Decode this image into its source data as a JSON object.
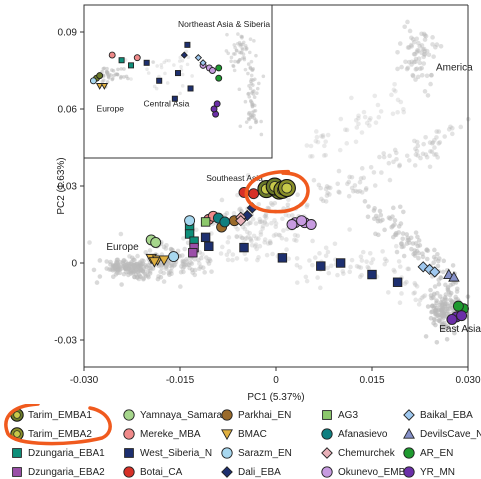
{
  "chart_data": {
    "type": "scatter",
    "xlabel": "PC1 (5.37%)",
    "ylabel": "PC2 (1.63%)",
    "xlim": [
      -0.03,
      0.03
    ],
    "ylim": [
      -0.04,
      0.1
    ],
    "x_ticks": [
      "-0.030",
      "-0.015",
      "0",
      "0.015",
      "0.030"
    ],
    "x_tick_values": [
      -0.03,
      -0.015,
      0,
      0.015,
      0.03
    ],
    "y_ticks": [
      "-0.03",
      "0",
      "0.03",
      "0.06",
      "0.09"
    ],
    "y_tick_values": [
      -0.03,
      0,
      0.03,
      0.06,
      0.09
    ],
    "main_labels": [
      {
        "text": "America",
        "x": 0.025,
        "y": 0.075
      },
      {
        "text": "Europe",
        "x": -0.0265,
        "y": 0.005
      },
      {
        "text": "East Asia",
        "x": 0.0255,
        "y": -0.0268
      }
    ],
    "inset": {
      "xlim": [
        -0.03,
        0.03
      ],
      "ylim": [
        0.03,
        0.1
      ],
      "y_ticks": [
        "0.09",
        "0.06"
      ],
      "y_tick_values": [
        0.09,
        0.06
      ],
      "labels": [
        {
          "text": "Northeast Asia & Siberia",
          "x": 0.0,
          "y": 0.092
        },
        {
          "text": "Europe",
          "x": -0.026,
          "y": 0.059
        },
        {
          "text": "Central Asia",
          "x": -0.011,
          "y": 0.061
        },
        {
          "text": "Southeast Asia",
          "x": 0.009,
          "y": 0.032
        }
      ]
    },
    "highlight_circle": {
      "x": 0.0,
      "y": 0.0275,
      "rx": 0.0055,
      "ry": 0.0075
    },
    "series": [
      {
        "name": "Tarim_EMBA1",
        "marker": "circle",
        "color": "#6b7a2a",
        "points": [
          [
            -0.0015,
            0.0288
          ],
          [
            0.0,
            0.0292
          ],
          [
            0.0005,
            0.0282
          ],
          [
            -0.0002,
            0.0298
          ]
        ]
      },
      {
        "name": "Tarim_EMBA2",
        "marker": "circle",
        "color": "#8a8f2a",
        "points": [
          [
            0.001,
            0.0285
          ],
          [
            0.0017,
            0.0292
          ]
        ]
      },
      {
        "name": "Dzungaria_EBA1",
        "marker": "square",
        "color": "#0e8f7a",
        "points": [
          [
            -0.0135,
            0.0145
          ],
          [
            -0.0135,
            0.0113
          ],
          [
            -0.0128,
            0.0085
          ]
        ]
      },
      {
        "name": "Dzungaria_EBA2",
        "marker": "square",
        "color": "#9b4fa8",
        "points": [
          [
            -0.0128,
            0.006
          ],
          [
            -0.013,
            0.004
          ]
        ]
      },
      {
        "name": "Yamnaya_Samara",
        "marker": "circle",
        "color": "#a6d68c",
        "points": [
          [
            -0.0195,
            0.009
          ],
          [
            -0.0188,
            0.008
          ]
        ]
      },
      {
        "name": "Mereke_MBA",
        "marker": "circle",
        "color": "#f08a8a",
        "points": [
          [
            -0.0105,
            0.017
          ],
          [
            -0.0098,
            0.0182
          ]
        ]
      },
      {
        "name": "West_Siberia_N",
        "marker": "square",
        "color": "#1d2f6f",
        "points": [
          [
            -0.011,
            0.01
          ],
          [
            -0.0105,
            0.0065
          ],
          [
            -0.005,
            0.006
          ],
          [
            0.001,
            0.002
          ],
          [
            0.007,
            -0.0012
          ],
          [
            0.0101,
            0.0
          ],
          [
            0.015,
            -0.0045
          ],
          [
            0.019,
            -0.0075
          ]
        ]
      },
      {
        "name": "Botai_CA",
        "marker": "circle",
        "color": "#d63027",
        "points": [
          [
            -0.0035,
            0.027
          ],
          [
            -0.005,
            0.0275
          ]
        ]
      },
      {
        "name": "Parkhai_EN",
        "marker": "circle",
        "color": "#9a6a2a",
        "points": [
          [
            -0.0065,
            0.0165
          ],
          [
            -0.0085,
            0.014
          ]
        ]
      },
      {
        "name": "BMAC",
        "marker": "triangle-down",
        "color": "#e0b040",
        "points": [
          [
            -0.0195,
            0.0018
          ],
          [
            -0.0185,
            0.0012
          ],
          [
            -0.0175,
            0.0012
          ],
          [
            -0.019,
            0.0005
          ]
        ]
      },
      {
        "name": "Sarazm_EN",
        "marker": "circle",
        "color": "#a8d8f0",
        "points": [
          [
            -0.0135,
            0.0165
          ],
          [
            -0.016,
            0.0025
          ]
        ]
      },
      {
        "name": "Dali_EBA",
        "marker": "diamond",
        "color": "#1d2f6f",
        "points": [
          [
            -0.0045,
            0.0185
          ],
          [
            -0.0037,
            0.0215
          ]
        ]
      },
      {
        "name": "AG3",
        "marker": "square",
        "color": "#8cc86c",
        "points": [
          [
            -0.011,
            0.016
          ]
        ]
      },
      {
        "name": "Afanasievo",
        "marker": "circle",
        "color": "#0f7f80",
        "points": [
          [
            -0.009,
            0.0175
          ],
          [
            -0.008,
            0.016
          ]
        ]
      },
      {
        "name": "Chemurchek",
        "marker": "diamond",
        "color": "#e8b0b8",
        "points": [
          [
            -0.0055,
            0.0178
          ],
          [
            -0.0055,
            0.0165
          ]
        ]
      },
      {
        "name": "Okunevo_EMBA",
        "marker": "circle",
        "color": "#c79be0",
        "points": [
          [
            0.003,
            0.0157
          ],
          [
            0.0045,
            0.0157
          ],
          [
            0.0025,
            0.015
          ],
          [
            0.0055,
            0.015
          ],
          [
            0.004,
            0.0165
          ]
        ]
      },
      {
        "name": "Baikal_EBA",
        "marker": "diamond",
        "color": "#9fc8ef",
        "points": [
          [
            0.023,
            -0.0015
          ],
          [
            0.024,
            -0.0025
          ],
          [
            0.0248,
            -0.0035
          ]
        ]
      },
      {
        "name": "DevilsCave_N",
        "marker": "triangle-up",
        "color": "#8590c8",
        "points": [
          [
            0.027,
            -0.0045
          ],
          [
            0.0278,
            -0.0055
          ]
        ]
      },
      {
        "name": "AR_EN",
        "marker": "circle",
        "color": "#1f9a30",
        "points": [
          [
            0.0293,
            -0.0178
          ],
          [
            0.0285,
            -0.0168
          ]
        ]
      },
      {
        "name": "YR_MN",
        "marker": "circle",
        "color": "#6b2fa8",
        "points": [
          [
            0.0282,
            -0.021
          ],
          [
            0.0275,
            -0.022
          ],
          [
            0.029,
            -0.0205
          ]
        ]
      }
    ]
  },
  "legend": {
    "items": [
      {
        "label": "Tarim_EMBA1",
        "marker": "circle",
        "color": "#6b7a2a"
      },
      {
        "label": "Tarim_EMBA2",
        "marker": "circle",
        "color": "#8a8f2a"
      },
      {
        "label": "Dzungaria_EBA1",
        "marker": "square",
        "color": "#0e8f7a"
      },
      {
        "label": "Dzungaria_EBA2",
        "marker": "square",
        "color": "#9b4fa8"
      },
      {
        "label": "Yamnaya_Samara",
        "marker": "circle",
        "color": "#a6d68c"
      },
      {
        "label": "Mereke_MBA",
        "marker": "circle",
        "color": "#f08a8a"
      },
      {
        "label": "West_Siberia_N",
        "marker": "square",
        "color": "#1d2f6f"
      },
      {
        "label": "Botai_CA",
        "marker": "circle",
        "color": "#d63027"
      },
      {
        "label": "Parkhai_EN",
        "marker": "circle",
        "color": "#9a6a2a"
      },
      {
        "label": "BMAC",
        "marker": "triangle-down",
        "color": "#e0b040"
      },
      {
        "label": "Sarazm_EN",
        "marker": "circle",
        "color": "#a8d8f0"
      },
      {
        "label": "Dali_EBA",
        "marker": "diamond",
        "color": "#1d2f6f"
      },
      {
        "label": "AG3",
        "marker": "square",
        "color": "#8cc86c"
      },
      {
        "label": "Afanasievo",
        "marker": "circle",
        "color": "#0f7f80"
      },
      {
        "label": "Chemurchek",
        "marker": "diamond",
        "color": "#e8b0b8"
      },
      {
        "label": "Okunevo_EMBA",
        "marker": "circle",
        "color": "#c79be0"
      },
      {
        "label": "Baikal_EBA",
        "marker": "diamond",
        "color": "#9fc8ef"
      },
      {
        "label": "DevilsCave_N",
        "marker": "triangle-up",
        "color": "#8590c8"
      },
      {
        "label": "AR_EN",
        "marker": "circle",
        "color": "#1f9a30"
      },
      {
        "label": "YR_MN",
        "marker": "circle",
        "color": "#6b2fa8"
      }
    ],
    "highlight_color": "#f05a1e"
  }
}
